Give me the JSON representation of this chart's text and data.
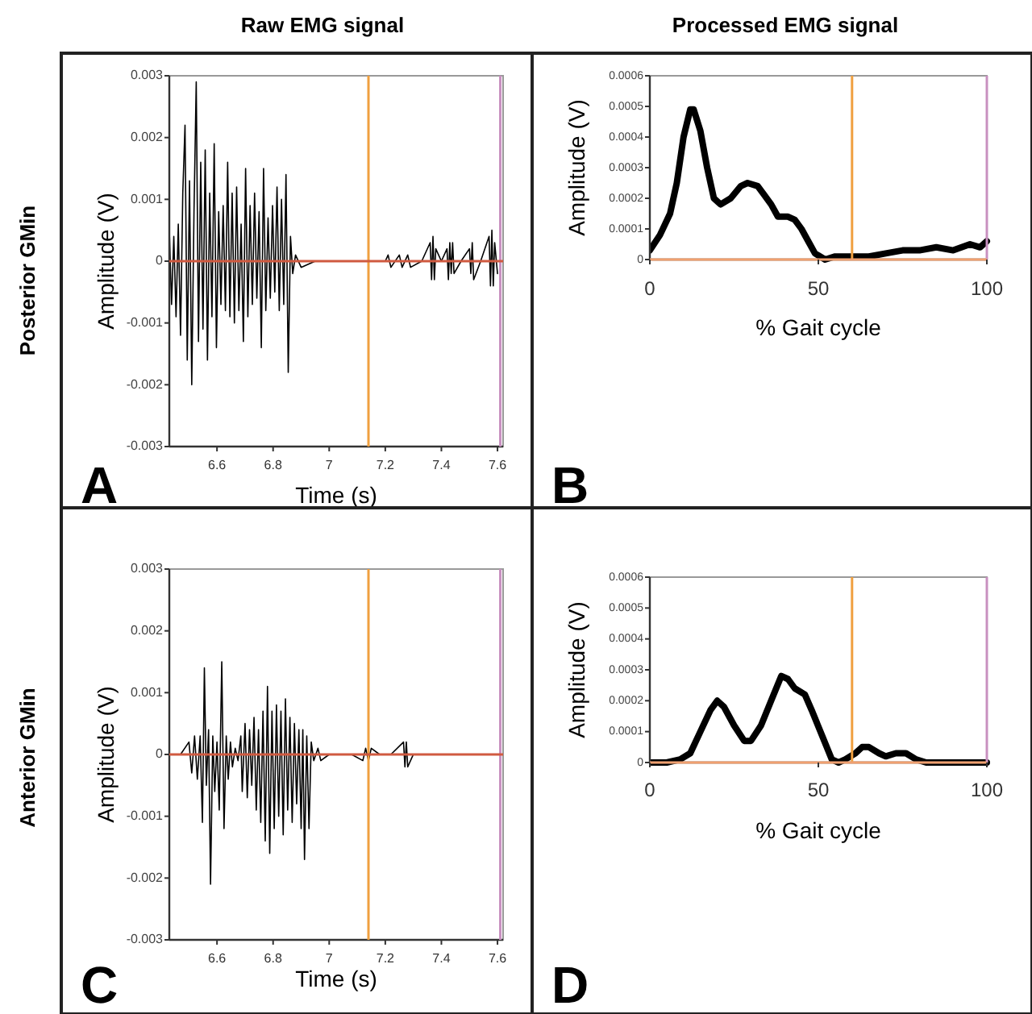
{
  "chart_data": [
    {
      "type": "line",
      "title": "Raw EMG signal",
      "xlabel": "Time (s)",
      "ylabel": "Amplitude (V)",
      "annotations": [
        "Posterior GMin",
        "A"
      ],
      "xlim": [
        6.43,
        7.62
      ],
      "xticks": [
        6.6,
        6.8,
        7,
        7.2,
        7.4,
        7.6
      ],
      "ylim": [
        -0.003,
        0.003
      ],
      "yticks": [
        -0.003,
        -0.002,
        -0.001,
        0,
        0.001,
        0.002,
        0.003
      ],
      "grid": false,
      "marker": "none",
      "line_style": "solid",
      "x": [
        6.43,
        6.438,
        6.446,
        6.454,
        6.462,
        6.47,
        6.478,
        6.486,
        6.494,
        6.502,
        6.51,
        6.518,
        6.526,
        6.534,
        6.542,
        6.55,
        6.558,
        6.566,
        6.574,
        6.582,
        6.59,
        6.598,
        6.606,
        6.614,
        6.622,
        6.63,
        6.638,
        6.646,
        6.654,
        6.662,
        6.67,
        6.678,
        6.686,
        6.694,
        6.702,
        6.71,
        6.718,
        6.726,
        6.734,
        6.742,
        6.75,
        6.758,
        6.766,
        6.774,
        6.782,
        6.79,
        6.798,
        6.806,
        6.814,
        6.822,
        6.83,
        6.838,
        6.846,
        6.854,
        6.862,
        6.87,
        6.88,
        6.9,
        6.95,
        7.0,
        7.05,
        7.1,
        7.15,
        7.2,
        7.21,
        7.22,
        7.25,
        7.26,
        7.28,
        7.29,
        7.33,
        7.36,
        7.365,
        7.37,
        7.375,
        7.38,
        7.4,
        7.42,
        7.425,
        7.43,
        7.435,
        7.44,
        7.445,
        7.47,
        7.5,
        7.505,
        7.51,
        7.515,
        7.54,
        7.57,
        7.575,
        7.58,
        7.585,
        7.59,
        7.6
      ],
      "series": [
        {
          "color": "#000000",
          "values": [
            0.0005,
            -0.0007,
            0.0004,
            -0.0009,
            0.0006,
            -0.0012,
            0.0011,
            0.0022,
            -0.0016,
            0.0013,
            -0.002,
            0.0008,
            0.0029,
            -0.0013,
            0.0016,
            -0.0011,
            0.0018,
            -0.0016,
            0.0011,
            -0.0009,
            0.0019,
            -0.0014,
            0.0008,
            -0.0007,
            0.0009,
            -0.0008,
            0.0016,
            -0.0009,
            0.0011,
            -0.001,
            0.0012,
            -0.0008,
            0.0006,
            -0.0013,
            0.0015,
            -0.0009,
            0.0009,
            -0.0007,
            0.0011,
            -0.0006,
            0.0008,
            -0.0014,
            0.0015,
            -0.0008,
            0.0007,
            -0.0006,
            0.0009,
            -0.0005,
            0.0012,
            -0.0008,
            0.001,
            -0.0007,
            0.0014,
            -0.0018,
            0.0004,
            -0.0002,
            0.0001,
            -0.0001,
            0,
            0,
            0,
            0,
            0,
            0,
            0.0001,
            -0.0001,
            0.0001,
            -0.0001,
            0.0001,
            -0.0001,
            0,
            0.0003,
            -0.0003,
            0.0004,
            -0.0003,
            0.0002,
            0,
            0.0002,
            -0.0003,
            0.0003,
            -0.0002,
            0.0003,
            -0.0002,
            0,
            0.0002,
            -0.0002,
            0.0003,
            -0.0003,
            0,
            0.0004,
            -0.0004,
            0.0005,
            -0.0004,
            0.0003,
            -0.0002
          ]
        }
      ],
      "ref_lines": [
        {
          "axis": "x",
          "value": 7.14,
          "color": "#f0a040"
        },
        {
          "axis": "x",
          "value": 7.61,
          "color": "#c890c0"
        },
        {
          "axis": "y",
          "value": 0,
          "color": "#d05a40"
        }
      ]
    },
    {
      "type": "line",
      "title": "Processed EMG signal",
      "xlabel": "% Gait cycle",
      "ylabel": "Amplitude (V)",
      "annotations": [
        "B"
      ],
      "xlim": [
        0,
        100
      ],
      "xticks": [
        0,
        50,
        100
      ],
      "ylim": [
        0,
        0.0006
      ],
      "yticks": [
        0,
        0.0001,
        0.0002,
        0.0003,
        0.0004,
        0.0005,
        0.0006
      ],
      "grid": false,
      "marker": "none",
      "line_style": "solid",
      "x": [
        0,
        3,
        6,
        8,
        10,
        12,
        13,
        15,
        17,
        19,
        21,
        24,
        27,
        29,
        32,
        34,
        36,
        38,
        41,
        43,
        45,
        47,
        49,
        52,
        55,
        60,
        65,
        70,
        75,
        80,
        85,
        90,
        95,
        98,
        100
      ],
      "series": [
        {
          "color": "#000000",
          "values": [
            3e-05,
            8e-05,
            0.00015,
            0.00025,
            0.0004,
            0.00049,
            0.00049,
            0.00042,
            0.0003,
            0.0002,
            0.00018,
            0.0002,
            0.00024,
            0.00025,
            0.00024,
            0.00021,
            0.00018,
            0.00014,
            0.00014,
            0.00013,
            0.0001,
            6e-05,
            2e-05,
            0,
            1e-05,
            1e-05,
            1e-05,
            2e-05,
            3e-05,
            3e-05,
            4e-05,
            3e-05,
            5e-05,
            4e-05,
            6e-05
          ]
        }
      ],
      "ref_lines": [
        {
          "axis": "x",
          "value": 60,
          "color": "#f0a040"
        },
        {
          "axis": "x",
          "value": 100,
          "color": "#c890c0"
        },
        {
          "axis": "y",
          "value": 0,
          "color": "#f0a070"
        }
      ]
    },
    {
      "type": "line",
      "xlabel": "Time (s)",
      "ylabel": "Amplitude (V)",
      "annotations": [
        "Anterior GMin",
        "C"
      ],
      "xlim": [
        6.43,
        7.62
      ],
      "xticks": [
        6.6,
        6.8,
        7,
        7.2,
        7.4,
        7.6
      ],
      "ylim": [
        -0.003,
        0.003
      ],
      "yticks": [
        -0.003,
        -0.002,
        -0.001,
        0,
        0.001,
        0.002,
        0.003
      ],
      "grid": false,
      "marker": "none",
      "line_style": "solid",
      "x": [
        6.43,
        6.47,
        6.5,
        6.51,
        6.52,
        6.53,
        6.54,
        6.548,
        6.555,
        6.562,
        6.57,
        6.577,
        6.585,
        6.592,
        6.6,
        6.608,
        6.617,
        6.625,
        6.633,
        6.64,
        6.648,
        6.655,
        6.665,
        6.675,
        6.685,
        6.69,
        6.7,
        6.708,
        6.716,
        6.724,
        6.732,
        6.74,
        6.748,
        6.756,
        6.764,
        6.772,
        6.78,
        6.788,
        6.796,
        6.804,
        6.812,
        6.82,
        6.828,
        6.836,
        6.844,
        6.852,
        6.86,
        6.868,
        6.876,
        6.884,
        6.892,
        6.9,
        6.906,
        6.912,
        6.92,
        6.928,
        6.936,
        6.945,
        6.96,
        6.97,
        7.0,
        7.05,
        7.08,
        7.12,
        7.13,
        7.14,
        7.15,
        7.18,
        7.22,
        7.265,
        7.27,
        7.275,
        7.28,
        7.3,
        7.4
      ],
      "series": [
        {
          "color": "#000000",
          "values": [
            0,
            0,
            0.0002,
            -0.0003,
            0.0003,
            -0.0004,
            0.0003,
            -0.0011,
            0.0014,
            -0.0005,
            0.0004,
            -0.0021,
            0.0003,
            -0.0006,
            0.0002,
            -0.0009,
            0.0015,
            -0.0012,
            0.0003,
            -0.0004,
            0.0002,
            -0.0002,
            0.0001,
            -0.0001,
            0.0003,
            -0.0006,
            0.0005,
            -0.0007,
            0.0004,
            -0.0005,
            0.0006,
            -0.0009,
            0.0004,
            -0.0011,
            0.0007,
            -0.0014,
            0.0011,
            -0.0016,
            0.0007,
            -0.0012,
            0.0008,
            -0.001,
            0.0007,
            -0.0013,
            0.0009,
            -0.0009,
            0.0006,
            -0.0011,
            0.0005,
            -0.0008,
            0.0004,
            -0.0012,
            0.0004,
            -0.0017,
            0.0003,
            -0.0012,
            0.0002,
            -0.0001,
            0.0001,
            -0.0001,
            0,
            0,
            0,
            -0.0001,
            0.0001,
            -0.0001,
            0.0001,
            0,
            0,
            0.0002,
            -0.0002,
            0.0002,
            -0.0002,
            0,
            0
          ]
        }
      ],
      "ref_lines": [
        {
          "axis": "x",
          "value": 7.14,
          "color": "#f0a040"
        },
        {
          "axis": "x",
          "value": 7.61,
          "color": "#c890c0"
        },
        {
          "axis": "y",
          "value": 0,
          "color": "#d05a40"
        }
      ]
    },
    {
      "type": "line",
      "xlabel": "% Gait cycle",
      "ylabel": "Amplitude (V)",
      "annotations": [
        "D"
      ],
      "xlim": [
        0,
        100
      ],
      "xticks": [
        0,
        50,
        100
      ],
      "ylim": [
        0,
        0.0006
      ],
      "yticks": [
        0,
        0.0001,
        0.0002,
        0.0003,
        0.0004,
        0.0005,
        0.0006
      ],
      "grid": false,
      "marker": "none",
      "line_style": "solid",
      "x": [
        0,
        5,
        9,
        12,
        15,
        18,
        20,
        22,
        25,
        28,
        30,
        33,
        36,
        39,
        41,
        43,
        46,
        48,
        51,
        54,
        56,
        58,
        61,
        63,
        65,
        68,
        70,
        73,
        76,
        79,
        82,
        86,
        90,
        100
      ],
      "series": [
        {
          "color": "#000000",
          "values": [
            0,
            0,
            1e-05,
            3e-05,
            0.0001,
            0.00017,
            0.0002,
            0.00018,
            0.00012,
            7e-05,
            7e-05,
            0.00012,
            0.0002,
            0.00028,
            0.00027,
            0.00024,
            0.00022,
            0.00017,
            9e-05,
            1e-05,
            0,
            1e-05,
            3e-05,
            5e-05,
            5e-05,
            3e-05,
            2e-05,
            3e-05,
            3e-05,
            1e-05,
            0,
            0,
            0,
            0
          ]
        }
      ],
      "ref_lines": [
        {
          "axis": "x",
          "value": 60,
          "color": "#f0a040"
        },
        {
          "axis": "x",
          "value": 100,
          "color": "#c890c0"
        },
        {
          "axis": "y",
          "value": 0,
          "color": "#f0a070"
        }
      ]
    }
  ]
}
